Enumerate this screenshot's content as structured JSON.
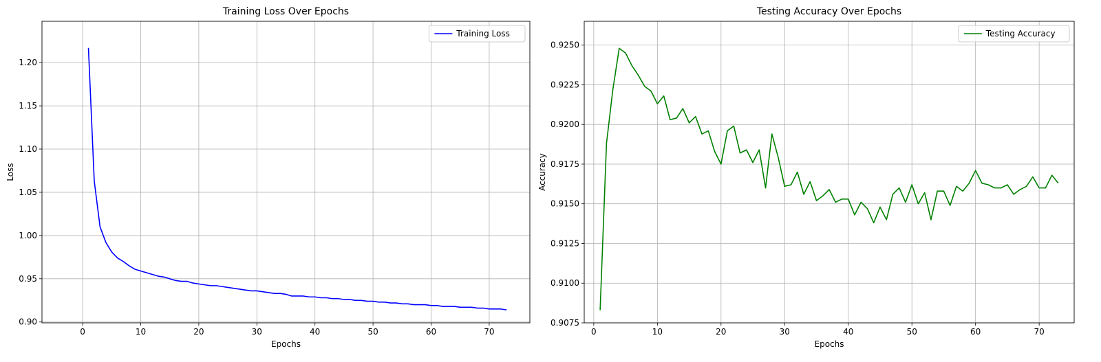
{
  "chart_data": [
    {
      "type": "line",
      "title": "Training Loss Over Epochs",
      "xlabel": "Epochs",
      "ylabel": "Loss",
      "xlim": [
        -7,
        77
      ],
      "ylim": [
        0.899,
        1.2478
      ],
      "xticks": [
        0,
        10,
        20,
        30,
        40,
        50,
        60,
        70
      ],
      "yticks": [
        0.9,
        0.95,
        1.0,
        1.05,
        1.1,
        1.15,
        1.2
      ],
      "ytick_labels": [
        "0.90",
        "0.95",
        "1.00",
        "1.05",
        "1.10",
        "1.15",
        "1.20"
      ],
      "grid": true,
      "legend_position": "top-right",
      "series": [
        {
          "name": "Training Loss",
          "color": "#0000ff",
          "x": [
            1,
            2,
            3,
            4,
            5,
            6,
            7,
            8,
            9,
            10,
            11,
            12,
            13,
            14,
            15,
            16,
            17,
            18,
            19,
            20,
            21,
            22,
            23,
            24,
            25,
            26,
            27,
            28,
            29,
            30,
            31,
            32,
            33,
            34,
            35,
            36,
            37,
            38,
            39,
            40,
            41,
            42,
            43,
            44,
            45,
            46,
            47,
            48,
            49,
            50,
            51,
            52,
            53,
            54,
            55,
            56,
            57,
            58,
            59,
            60,
            61,
            62,
            63,
            64,
            65,
            66,
            67,
            68,
            69,
            70,
            71,
            72,
            73
          ],
          "values": [
            1.217,
            1.063,
            1.01,
            0.992,
            0.981,
            0.974,
            0.97,
            0.965,
            0.961,
            0.959,
            0.957,
            0.955,
            0.953,
            0.952,
            0.95,
            0.948,
            0.947,
            0.947,
            0.945,
            0.944,
            0.943,
            0.942,
            0.942,
            0.941,
            0.94,
            0.939,
            0.938,
            0.937,
            0.936,
            0.936,
            0.935,
            0.934,
            0.933,
            0.933,
            0.932,
            0.93,
            0.93,
            0.93,
            0.929,
            0.929,
            0.928,
            0.928,
            0.927,
            0.927,
            0.926,
            0.926,
            0.925,
            0.925,
            0.924,
            0.924,
            0.923,
            0.923,
            0.922,
            0.922,
            0.921,
            0.921,
            0.92,
            0.92,
            0.92,
            0.919,
            0.919,
            0.918,
            0.918,
            0.918,
            0.917,
            0.917,
            0.917,
            0.916,
            0.916,
            0.915,
            0.915,
            0.915,
            0.914
          ]
        }
      ]
    },
    {
      "type": "line",
      "title": "Testing Accuracy Over Epochs",
      "xlabel": "Epochs",
      "ylabel": "Accuracy",
      "xlim": [
        -1.5,
        75.5
      ],
      "ylim": [
        0.9075,
        0.9265
      ],
      "xticks": [
        0,
        10,
        20,
        30,
        40,
        50,
        60,
        70
      ],
      "yticks": [
        0.9075,
        0.91,
        0.9125,
        0.915,
        0.9175,
        0.92,
        0.9225,
        0.925
      ],
      "ytick_labels": [
        "0.9075",
        "0.9100",
        "0.9125",
        "0.9150",
        "0.9175",
        "0.9200",
        "0.9225",
        "0.9250"
      ],
      "grid": true,
      "legend_position": "top-right",
      "series": [
        {
          "name": "Testing Accuracy",
          "color": "#008000",
          "x": [
            1,
            2,
            3,
            4,
            5,
            6,
            7,
            8,
            9,
            10,
            11,
            12,
            13,
            14,
            15,
            16,
            17,
            18,
            19,
            20,
            21,
            22,
            23,
            24,
            25,
            26,
            27,
            28,
            29,
            30,
            31,
            32,
            33,
            34,
            35,
            36,
            37,
            38,
            39,
            40,
            41,
            42,
            43,
            44,
            45,
            46,
            47,
            48,
            49,
            50,
            51,
            52,
            53,
            54,
            55,
            56,
            57,
            58,
            59,
            60,
            61,
            62,
            63,
            64,
            65,
            66,
            67,
            68,
            69,
            70,
            71,
            72,
            73
          ],
          "values": [
            0.9083,
            0.9188,
            0.9222,
            0.9248,
            0.9245,
            0.9237,
            0.9231,
            0.9224,
            0.9221,
            0.9213,
            0.9218,
            0.9203,
            0.9204,
            0.921,
            0.9201,
            0.9205,
            0.9194,
            0.9196,
            0.9183,
            0.9175,
            0.9196,
            0.9199,
            0.9182,
            0.9184,
            0.9176,
            0.9184,
            0.916,
            0.9194,
            0.9179,
            0.9161,
            0.9162,
            0.917,
            0.9156,
            0.9164,
            0.9152,
            0.9155,
            0.9159,
            0.9151,
            0.9153,
            0.9153,
            0.9143,
            0.9151,
            0.9147,
            0.9138,
            0.9148,
            0.914,
            0.9156,
            0.916,
            0.9151,
            0.9162,
            0.915,
            0.9157,
            0.914,
            0.9158,
            0.9158,
            0.9149,
            0.9161,
            0.9158,
            0.9163,
            0.9171,
            0.9163,
            0.9162,
            0.916,
            0.916,
            0.9162,
            0.9156,
            0.9159,
            0.9161,
            0.9167,
            0.916,
            0.916,
            0.9168,
            0.9163
          ]
        }
      ]
    }
  ]
}
